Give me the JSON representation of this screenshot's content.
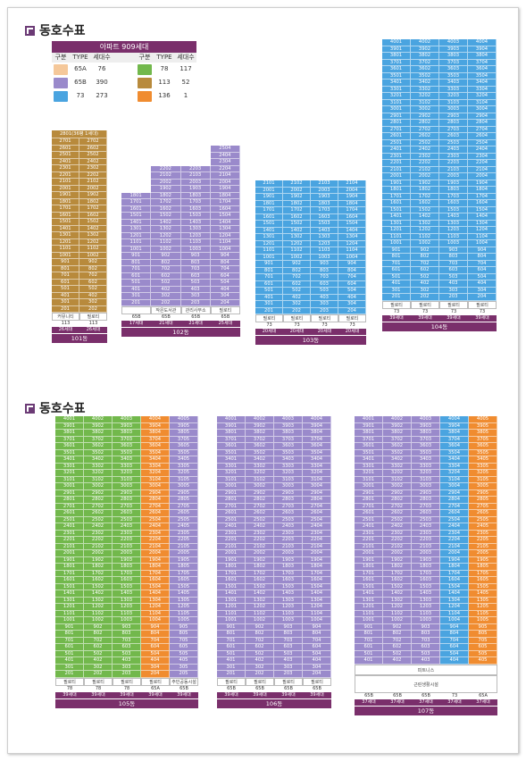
{
  "headers": {
    "top": "동호수표",
    "bottom": "동호수표"
  },
  "legend": {
    "title": "아파트 909세대",
    "cols": [
      "구분",
      "TYPE",
      "세대수",
      "구분",
      "TYPE",
      "세대수"
    ],
    "rows": [
      [
        "65A",
        "76",
        "78",
        "117"
      ],
      [
        "65B",
        "390",
        "113",
        "52"
      ],
      [
        "73",
        "273",
        "136",
        "1"
      ]
    ],
    "colors": {
      "65A": "#f5c89a",
      "65B": "#9a8acb",
      "73": "#4aa4e0",
      "78": "#72b84c",
      "113": "#b88a3c",
      "136": "#f08c30"
    }
  },
  "b101": {
    "name": "101동",
    "note": "2801(36평 1세대)",
    "fac": "커뮤니티",
    "types": [
      "113",
      "113"
    ],
    "counts": [
      "26세대",
      "26세대"
    ],
    "pil": [
      "필로티",
      "필로티"
    ]
  },
  "b102": {
    "name": "102동",
    "fac": [
      "작은도서관",
      "관리사무소",
      "필로티"
    ],
    "types": [
      "65B",
      "65B",
      "65B"
    ],
    "counts": [
      "17세대",
      "21세대",
      "21세대",
      "25세대"
    ],
    "typeRow": [
      "65B",
      "65B",
      "65B",
      "65B"
    ]
  },
  "b103": {
    "name": "103동",
    "pil": [
      "필로티",
      "필로티",
      "필로티",
      "필로티"
    ],
    "types": [
      "73",
      "73",
      "73",
      "73"
    ],
    "counts": [
      "20세대",
      "20세대",
      "20세대",
      "20세대"
    ]
  },
  "b104": {
    "name": "104동",
    "pil": [
      "필로티",
      "필로티",
      "필로티",
      "필로티"
    ],
    "types": [
      "73",
      "73",
      "73",
      "73"
    ],
    "counts": [
      "39세대",
      "39세대",
      "39세대",
      "39세대"
    ]
  },
  "b105": {
    "name": "105동",
    "pil": [
      "필로티",
      "필로티",
      "필로티",
      "필로티",
      "주민공동시설"
    ],
    "types": [
      "78",
      "78",
      "78",
      "65A",
      "65B"
    ],
    "counts": [
      "39세대",
      "39세대",
      "39세대",
      "39세대",
      "39세대"
    ]
  },
  "b106": {
    "name": "106동",
    "pil": [
      "필로티",
      "필로티",
      "필로티",
      "필로티"
    ],
    "types": [
      "65B",
      "65B",
      "65B",
      "65B"
    ],
    "counts": [
      "39세대",
      "39세대",
      "39세대",
      "39세대"
    ]
  },
  "b107": {
    "name": "107동",
    "fac1": "피트니스",
    "fac2": "근린생활시설",
    "types": [
      "65B",
      "65B",
      "65B",
      "73",
      "65A"
    ],
    "counts": [
      "37세대",
      "37세대",
      "37세대",
      "37세대",
      "37세대"
    ]
  }
}
